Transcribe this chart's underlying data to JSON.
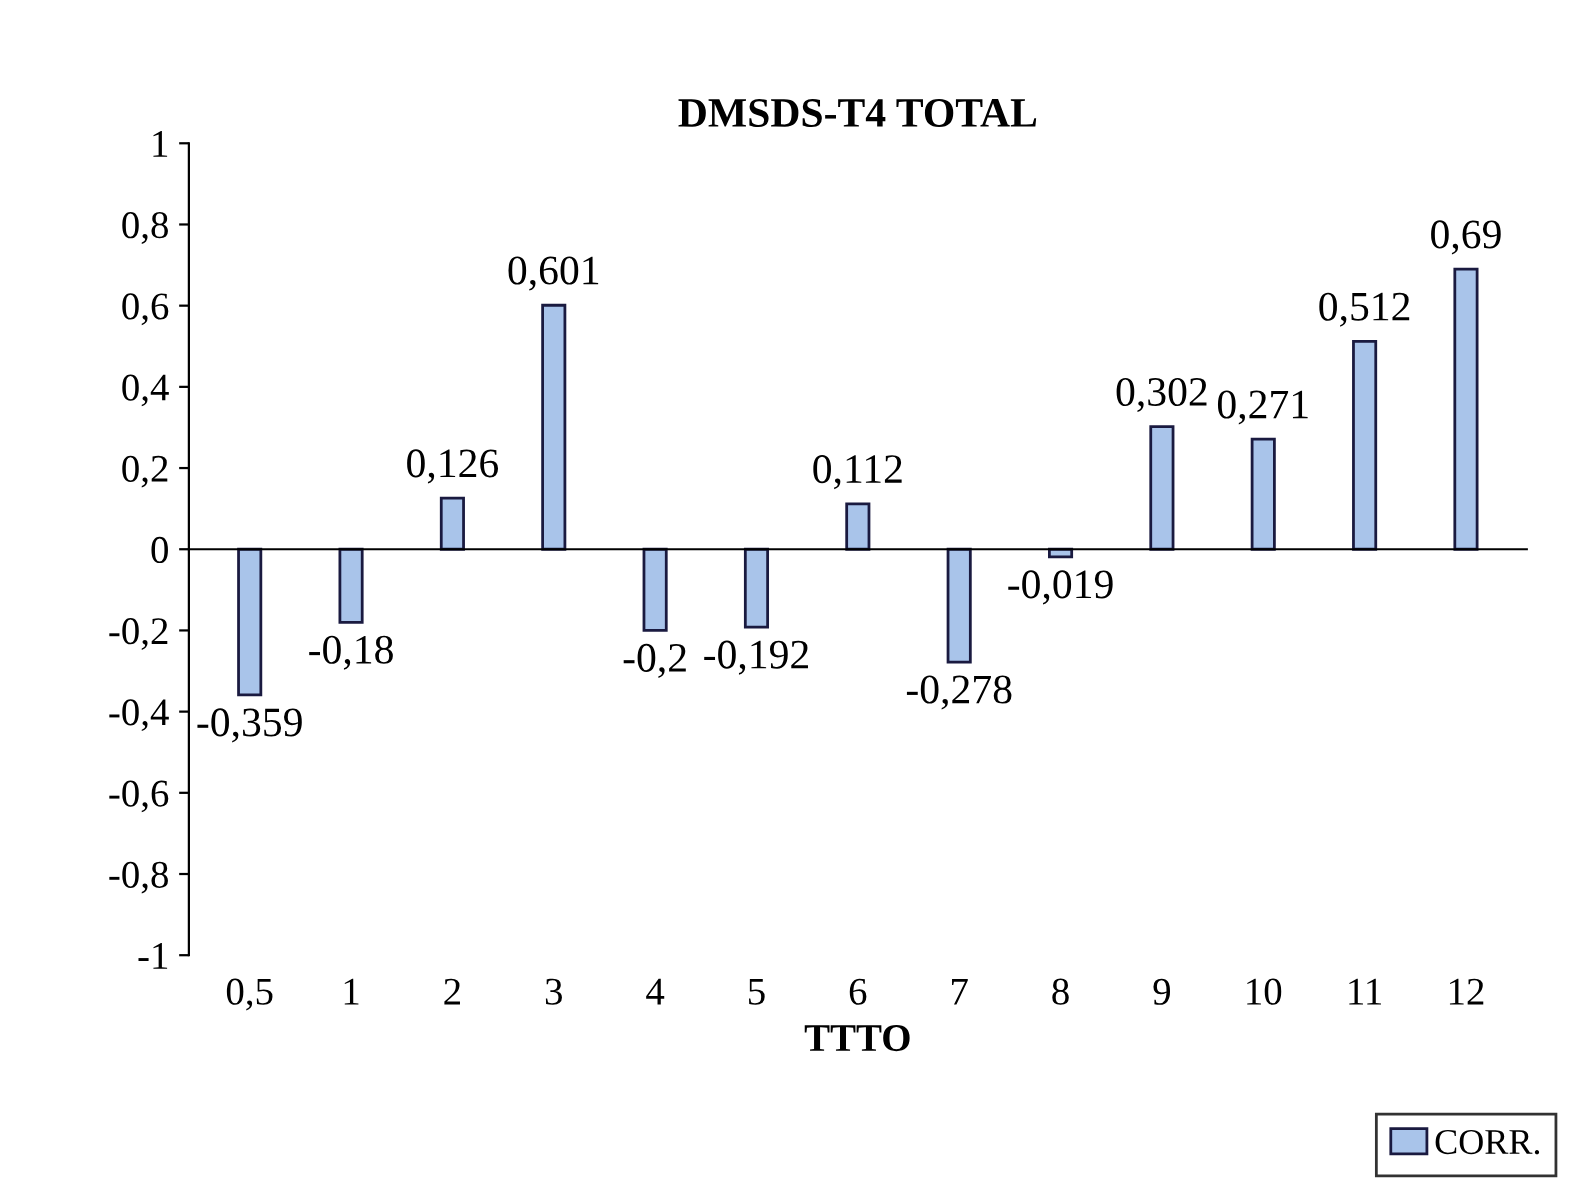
{
  "chart_data": {
    "type": "bar",
    "title": "DMSDS-T4 TOTAL",
    "xlabel": "TTTO",
    "categories": [
      "0,5",
      "1",
      "2",
      "3",
      "4",
      "5",
      "6",
      "7",
      "8",
      "9",
      "10",
      "11",
      "12"
    ],
    "series": [
      {
        "name": "CORR.",
        "color": "#a9c4ea",
        "values": [
          -0.359,
          -0.18,
          0.126,
          0.601,
          -0.2,
          -0.192,
          0.112,
          -0.278,
          -0.019,
          0.302,
          0.271,
          0.512,
          0.69
        ],
        "value_labels": [
          "-0,359",
          "-0,18",
          "0,126",
          "0,601",
          "-0,2",
          "-0,192",
          "0,112",
          "-0,278",
          "-0,019",
          "0,302",
          "0,271",
          "0,512",
          "0,69"
        ]
      }
    ],
    "ylim": [
      -1,
      1
    ],
    "yticks": [
      {
        "value": -1,
        "label": "-1"
      },
      {
        "value": -0.8,
        "label": "-0,8"
      },
      {
        "value": -0.6,
        "label": "-0,6"
      },
      {
        "value": -0.4,
        "label": "-0,4"
      },
      {
        "value": -0.2,
        "label": "-0,2"
      },
      {
        "value": 0,
        "label": "0"
      },
      {
        "value": 0.2,
        "label": "0,2"
      },
      {
        "value": 0.4,
        "label": "0,4"
      },
      {
        "value": 0.6,
        "label": "0,6"
      },
      {
        "value": 0.8,
        "label": "0,8"
      },
      {
        "value": 1,
        "label": "1"
      }
    ],
    "legend": "bottom right"
  }
}
